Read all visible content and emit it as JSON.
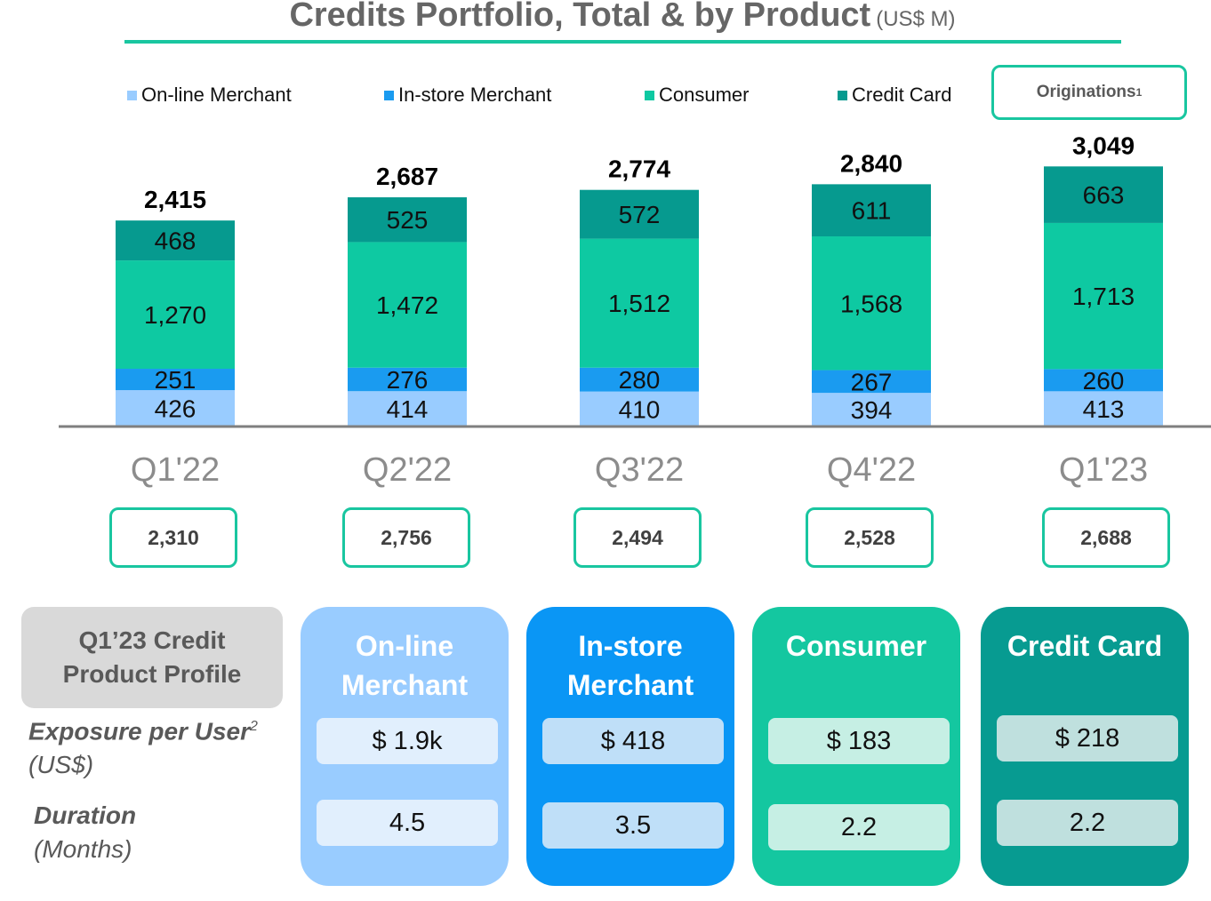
{
  "title": {
    "main": "Credits Portfolio, Total & by Product",
    "unit": "(US$ M)"
  },
  "legend": {
    "items": [
      {
        "label": "On-line Merchant",
        "color": "#99ccff"
      },
      {
        "label": "In-store Merchant",
        "color": "#1a9bf0"
      },
      {
        "label": "Consumer",
        "color": "#0ec9a2"
      },
      {
        "label": "Credit Card",
        "color": "#069a8f"
      }
    ],
    "originations_label": "Originations",
    "originations_footnote": "1"
  },
  "chart_data": {
    "type": "bar",
    "stacked": true,
    "categories": [
      "Q1'22",
      "Q2'22",
      "Q3'22",
      "Q4'22",
      "Q1'23"
    ],
    "series": [
      {
        "name": "On-line Merchant",
        "color": "#99ccff",
        "values": [
          426,
          414,
          410,
          394,
          413
        ],
        "labels": [
          "426",
          "414",
          "410",
          "394",
          "413"
        ]
      },
      {
        "name": "In-store Merchant",
        "color": "#1a9bf0",
        "values": [
          251,
          276,
          280,
          267,
          260
        ],
        "labels": [
          "251",
          "276",
          "280",
          "267",
          "260"
        ]
      },
      {
        "name": "Consumer",
        "color": "#0ec9a2",
        "values": [
          1270,
          1472,
          1512,
          1568,
          1713
        ],
        "labels": [
          "1,270",
          "1,472",
          "1,512",
          "1,568",
          "1,713"
        ]
      },
      {
        "name": "Credit Card",
        "color": "#069a8f",
        "values": [
          468,
          525,
          572,
          611,
          663
        ],
        "labels": [
          "468",
          "525",
          "572",
          "611",
          "663"
        ]
      }
    ],
    "totals": [
      2415,
      2687,
      2774,
      2840,
      3049
    ],
    "total_labels": [
      "2,415",
      "2,687",
      "2,774",
      "2,840",
      "3,049"
    ],
    "originations": [
      "2,310",
      "2,756",
      "2,494",
      "2,528",
      "2,688"
    ],
    "grid": false
  },
  "profile": {
    "header_line1": "Q1’23 Credit",
    "header_line2": "Product Profile",
    "exposure_label": "Exposure per User",
    "exposure_footnote": "2",
    "exposure_unit": "(US$)",
    "duration_label": "Duration",
    "duration_unit": "(Months)",
    "products": [
      {
        "line1": "On-line",
        "line2": "Merchant",
        "exposure": "$ 1.9k",
        "duration": "4.5",
        "color": "#99ccff",
        "box_color": "#e1effd"
      },
      {
        "line1": "In-store",
        "line2": "Merchant",
        "exposure": "$ 418",
        "duration": "3.5",
        "color": "#0a96f5",
        "box_color": "#bfdff8"
      },
      {
        "line1": "Consumer",
        "line2": "",
        "exposure": "$ 183",
        "duration": "2.2",
        "color": "#14c7a0",
        "box_color": "#c6efe4"
      },
      {
        "line1": "Credit Card",
        "line2": "",
        "exposure": "$ 218",
        "duration": "2.2",
        "color": "#079b91",
        "box_color": "#bfe0de"
      }
    ]
  }
}
